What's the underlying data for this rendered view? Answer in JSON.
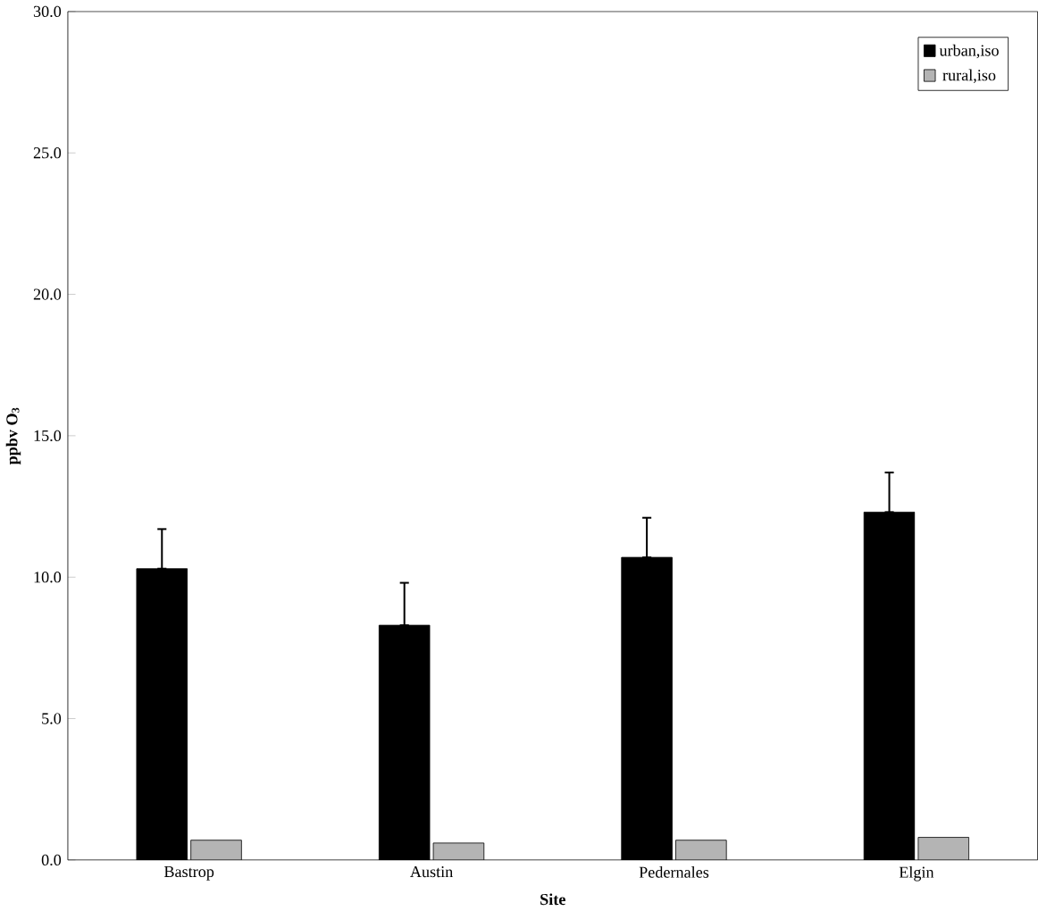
{
  "chart_data": {
    "type": "bar",
    "xlabel": "Site",
    "ylabel": "ppbv O$_{3}$",
    "categories": [
      "Bastrop",
      "Austin",
      "Pedernales",
      "Elgin"
    ],
    "series": [
      {
        "name": "urban,iso",
        "color": "#000000",
        "values": [
          10.3,
          8.3,
          10.7,
          12.3
        ],
        "errors": [
          [
            10.3,
            11.7
          ],
          [
            8.3,
            9.8
          ],
          [
            10.7,
            12.1
          ],
          [
            12.3,
            13.7
          ]
        ]
      },
      {
        "name": "rural,iso",
        "color": "#b4b4b4",
        "values": [
          0.7,
          0.6,
          0.7,
          0.8
        ]
      }
    ],
    "ylim": [
      0,
      30
    ],
    "yticks": [
      {
        "value": 0,
        "label": "0.0"
      },
      {
        "value": 5,
        "label": "5.0"
      },
      {
        "value": 10,
        "label": "10.0"
      },
      {
        "value": 15,
        "label": "15.0"
      },
      {
        "value": 20,
        "label": "20.0"
      },
      {
        "value": 25,
        "label": "25.0"
      },
      {
        "value": 30,
        "label": "30.0"
      }
    ],
    "legend": "top right",
    "grid": false
  }
}
